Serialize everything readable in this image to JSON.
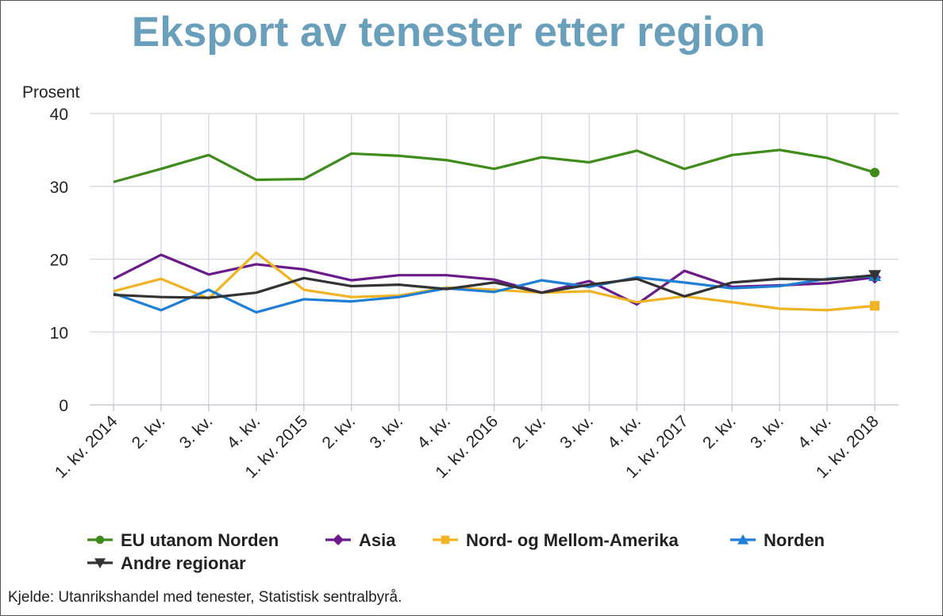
{
  "chart_data": {
    "type": "line",
    "title": "Eksport av tenester etter region",
    "ylabel": "Prosent",
    "xlabel": "",
    "ylim": [
      0,
      40
    ],
    "yticks": [
      "0",
      "10",
      "20",
      "30",
      "40"
    ],
    "grid": true,
    "legend_position": "bottom",
    "categories": [
      "1. kv. 2014",
      "2. kv.",
      "3. kv.",
      "4. kv.",
      "1. kv. 2015",
      "2. kv.",
      "3. kv.",
      "4. kv.",
      "1. kv. 2016",
      "2. kv.",
      "3. kv.",
      "4. kv.",
      "1. kv. 2017",
      "2. kv.",
      "3. kv.",
      "4. kv.",
      "1. kv. 2018"
    ],
    "series": [
      {
        "name": "EU utanom Norden",
        "color": "#3f8c1c",
        "marker": "circle",
        "values": [
          30.6,
          32.4,
          34.3,
          30.9,
          31.0,
          34.5,
          34.2,
          33.6,
          32.4,
          34.0,
          33.3,
          34.9,
          32.4,
          34.3,
          35.0,
          33.9,
          31.9
        ]
      },
      {
        "name": "Asia",
        "color": "#6b1a8a",
        "marker": "diamond",
        "values": [
          17.3,
          20.6,
          17.9,
          19.3,
          18.6,
          17.1,
          17.8,
          17.8,
          17.2,
          15.4,
          17.0,
          13.8,
          18.4,
          16.2,
          16.4,
          16.7,
          17.5
        ]
      },
      {
        "name": "Nord- og Mellom-Amerika",
        "color": "#f0b323",
        "marker": "square",
        "values": [
          15.6,
          17.3,
          14.6,
          20.9,
          15.8,
          14.8,
          15.0,
          16.1,
          15.8,
          15.4,
          15.6,
          14.1,
          14.9,
          14.1,
          13.2,
          13.0,
          13.6
        ]
      },
      {
        "name": "Norden",
        "color": "#1f7fd6",
        "marker": "triangle-up",
        "values": [
          15.3,
          13.0,
          15.8,
          12.7,
          14.5,
          14.2,
          14.8,
          16.0,
          15.5,
          17.1,
          16.2,
          17.5,
          16.8,
          16.0,
          16.3,
          17.3,
          17.7
        ]
      },
      {
        "name": "Andre regionar",
        "color": "#333333",
        "marker": "triangle-down",
        "values": [
          15.1,
          14.8,
          14.7,
          15.4,
          17.4,
          16.3,
          16.5,
          15.9,
          16.8,
          15.4,
          16.5,
          17.3,
          14.9,
          16.8,
          17.3,
          17.2,
          17.8
        ]
      }
    ]
  },
  "source": "Kjelde: Utanrikshandel med tenester, Statistisk sentralbyrå."
}
